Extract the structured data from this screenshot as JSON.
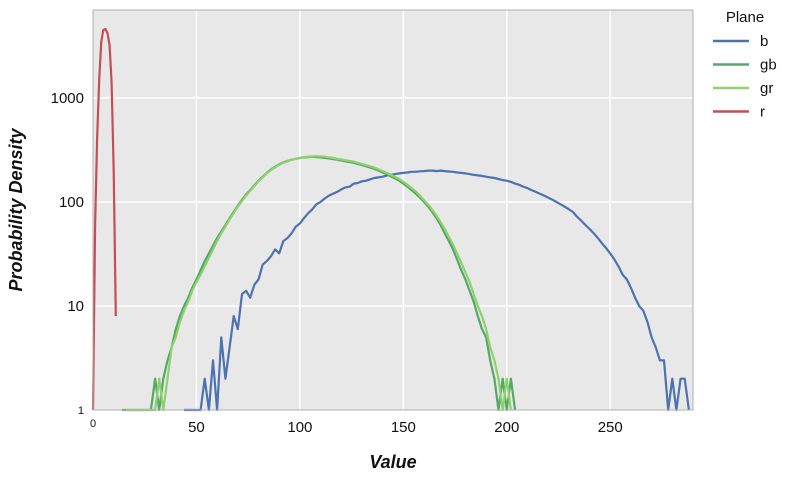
{
  "chart_data": {
    "type": "line",
    "xlabel": "Value",
    "ylabel": "Probability Density",
    "xlim": [
      0,
      290
    ],
    "ylim": [
      1,
      7000
    ],
    "yscale": "log",
    "x_ticks": [
      0,
      50,
      100,
      150,
      200,
      250
    ],
    "y_ticks": [
      1,
      10,
      100,
      1000
    ],
    "y_tick_labels": [
      "1",
      "10",
      "100",
      "1000"
    ],
    "grid": true,
    "legend": {
      "title": "Plane",
      "placement": "outside-top-right"
    },
    "series": [
      {
        "name": "b",
        "color": "#4c72b0",
        "points": [
          [
            44,
            1
          ],
          [
            48,
            1
          ],
          [
            52,
            1
          ],
          [
            54,
            2
          ],
          [
            56,
            1
          ],
          [
            58,
            3
          ],
          [
            60,
            1
          ],
          [
            62,
            5
          ],
          [
            64,
            2
          ],
          [
            66,
            4
          ],
          [
            68,
            8
          ],
          [
            70,
            6
          ],
          [
            72,
            13
          ],
          [
            74,
            14
          ],
          [
            76,
            12
          ],
          [
            78,
            16
          ],
          [
            80,
            18
          ],
          [
            82,
            25
          ],
          [
            84,
            27
          ],
          [
            86,
            30
          ],
          [
            88,
            35
          ],
          [
            90,
            32
          ],
          [
            92,
            42
          ],
          [
            94,
            45
          ],
          [
            96,
            50
          ],
          [
            98,
            58
          ],
          [
            100,
            62
          ],
          [
            102,
            70
          ],
          [
            104,
            78
          ],
          [
            106,
            85
          ],
          [
            108,
            95
          ],
          [
            110,
            100
          ],
          [
            112,
            108
          ],
          [
            114,
            115
          ],
          [
            116,
            120
          ],
          [
            118,
            125
          ],
          [
            120,
            132
          ],
          [
            122,
            138
          ],
          [
            124,
            140
          ],
          [
            126,
            150
          ],
          [
            128,
            152
          ],
          [
            130,
            158
          ],
          [
            132,
            160
          ],
          [
            134,
            165
          ],
          [
            136,
            170
          ],
          [
            138,
            172
          ],
          [
            140,
            175
          ],
          [
            142,
            180
          ],
          [
            144,
            182
          ],
          [
            146,
            185
          ],
          [
            148,
            188
          ],
          [
            150,
            190
          ],
          [
            152,
            192
          ],
          [
            154,
            195
          ],
          [
            156,
            195
          ],
          [
            158,
            197
          ],
          [
            160,
            198
          ],
          [
            162,
            200
          ],
          [
            164,
            200
          ],
          [
            166,
            198
          ],
          [
            168,
            200
          ],
          [
            170,
            198
          ],
          [
            172,
            196
          ],
          [
            174,
            195
          ],
          [
            176,
            192
          ],
          [
            178,
            190
          ],
          [
            180,
            188
          ],
          [
            182,
            185
          ],
          [
            184,
            182
          ],
          [
            186,
            180
          ],
          [
            188,
            178
          ],
          [
            190,
            175
          ],
          [
            192,
            172
          ],
          [
            194,
            170
          ],
          [
            196,
            166
          ],
          [
            198,
            162
          ],
          [
            200,
            160
          ],
          [
            202,
            156
          ],
          [
            204,
            150
          ],
          [
            206,
            146
          ],
          [
            208,
            140
          ],
          [
            210,
            136
          ],
          [
            212,
            130
          ],
          [
            214,
            125
          ],
          [
            216,
            120
          ],
          [
            218,
            115
          ],
          [
            220,
            110
          ],
          [
            222,
            105
          ],
          [
            224,
            100
          ],
          [
            226,
            95
          ],
          [
            228,
            90
          ],
          [
            230,
            85
          ],
          [
            232,
            80
          ],
          [
            234,
            72
          ],
          [
            236,
            66
          ],
          [
            238,
            60
          ],
          [
            240,
            55
          ],
          [
            242,
            50
          ],
          [
            244,
            45
          ],
          [
            246,
            40
          ],
          [
            248,
            36
          ],
          [
            250,
            32
          ],
          [
            252,
            28
          ],
          [
            254,
            24
          ],
          [
            256,
            20
          ],
          [
            258,
            18
          ],
          [
            260,
            15
          ],
          [
            262,
            12
          ],
          [
            264,
            10
          ],
          [
            266,
            9
          ],
          [
            268,
            7
          ],
          [
            270,
            5
          ],
          [
            272,
            4
          ],
          [
            274,
            3
          ],
          [
            276,
            3
          ],
          [
            278,
            1
          ],
          [
            280,
            2
          ],
          [
            282,
            1
          ],
          [
            284,
            2
          ],
          [
            286,
            2
          ],
          [
            288,
            1
          ]
        ]
      },
      {
        "name": "gb",
        "color": "#55a868",
        "points": [
          [
            14,
            1
          ],
          [
            28,
            1
          ],
          [
            30,
            2
          ],
          [
            32,
            1
          ],
          [
            34,
            2
          ],
          [
            36,
            3
          ],
          [
            38,
            4
          ],
          [
            40,
            6
          ],
          [
            42,
            8
          ],
          [
            44,
            10
          ],
          [
            46,
            12
          ],
          [
            48,
            15
          ],
          [
            50,
            18
          ],
          [
            52,
            22
          ],
          [
            54,
            27
          ],
          [
            56,
            32
          ],
          [
            58,
            38
          ],
          [
            60,
            45
          ],
          [
            62,
            52
          ],
          [
            64,
            60
          ],
          [
            66,
            70
          ],
          [
            68,
            80
          ],
          [
            70,
            92
          ],
          [
            72,
            105
          ],
          [
            74,
            118
          ],
          [
            76,
            130
          ],
          [
            78,
            145
          ],
          [
            80,
            160
          ],
          [
            82,
            175
          ],
          [
            84,
            190
          ],
          [
            86,
            205
          ],
          [
            88,
            218
          ],
          [
            90,
            230
          ],
          [
            92,
            240
          ],
          [
            94,
            248
          ],
          [
            96,
            255
          ],
          [
            98,
            260
          ],
          [
            100,
            265
          ],
          [
            102,
            268
          ],
          [
            104,
            270
          ],
          [
            106,
            272
          ],
          [
            108,
            270
          ],
          [
            110,
            268
          ],
          [
            112,
            265
          ],
          [
            114,
            262
          ],
          [
            116,
            258
          ],
          [
            118,
            255
          ],
          [
            120,
            250
          ],
          [
            122,
            246
          ],
          [
            124,
            242
          ],
          [
            126,
            238
          ],
          [
            128,
            232
          ],
          [
            130,
            226
          ],
          [
            132,
            220
          ],
          [
            134,
            214
          ],
          [
            136,
            208
          ],
          [
            138,
            200
          ],
          [
            140,
            192
          ],
          [
            142,
            185
          ],
          [
            144,
            176
          ],
          [
            146,
            168
          ],
          [
            148,
            160
          ],
          [
            150,
            150
          ],
          [
            152,
            140
          ],
          [
            154,
            130
          ],
          [
            156,
            120
          ],
          [
            158,
            110
          ],
          [
            160,
            100
          ],
          [
            162,
            90
          ],
          [
            164,
            80
          ],
          [
            166,
            70
          ],
          [
            168,
            60
          ],
          [
            170,
            50
          ],
          [
            172,
            42
          ],
          [
            174,
            35
          ],
          [
            176,
            28
          ],
          [
            178,
            22
          ],
          [
            180,
            18
          ],
          [
            182,
            14
          ],
          [
            184,
            11
          ],
          [
            186,
            8
          ],
          [
            188,
            6
          ],
          [
            190,
            5
          ],
          [
            192,
            3
          ],
          [
            194,
            2
          ],
          [
            196,
            1
          ],
          [
            198,
            2
          ],
          [
            200,
            1
          ],
          [
            202,
            2
          ],
          [
            204,
            1
          ]
        ]
      },
      {
        "name": "gr",
        "color": "#8fd16a",
        "points": [
          [
            16,
            1
          ],
          [
            30,
            1
          ],
          [
            32,
            2
          ],
          [
            34,
            1
          ],
          [
            36,
            2
          ],
          [
            38,
            4
          ],
          [
            40,
            5
          ],
          [
            42,
            7
          ],
          [
            44,
            9
          ],
          [
            46,
            11
          ],
          [
            48,
            14
          ],
          [
            50,
            17
          ],
          [
            52,
            20
          ],
          [
            54,
            24
          ],
          [
            56,
            29
          ],
          [
            58,
            35
          ],
          [
            60,
            42
          ],
          [
            62,
            50
          ],
          [
            64,
            58
          ],
          [
            66,
            68
          ],
          [
            68,
            78
          ],
          [
            70,
            90
          ],
          [
            72,
            102
          ],
          [
            74,
            115
          ],
          [
            76,
            128
          ],
          [
            78,
            142
          ],
          [
            80,
            158
          ],
          [
            82,
            172
          ],
          [
            84,
            188
          ],
          [
            86,
            202
          ],
          [
            88,
            215
          ],
          [
            90,
            228
          ],
          [
            92,
            238
          ],
          [
            94,
            246
          ],
          [
            96,
            254
          ],
          [
            98,
            260
          ],
          [
            100,
            265
          ],
          [
            102,
            270
          ],
          [
            104,
            272
          ],
          [
            106,
            274
          ],
          [
            108,
            275
          ],
          [
            110,
            274
          ],
          [
            112,
            272
          ],
          [
            114,
            268
          ],
          [
            116,
            265
          ],
          [
            118,
            260
          ],
          [
            120,
            256
          ],
          [
            122,
            252
          ],
          [
            124,
            248
          ],
          [
            126,
            244
          ],
          [
            128,
            238
          ],
          [
            130,
            232
          ],
          [
            132,
            226
          ],
          [
            134,
            220
          ],
          [
            136,
            214
          ],
          [
            138,
            206
          ],
          [
            140,
            198
          ],
          [
            142,
            190
          ],
          [
            144,
            182
          ],
          [
            146,
            174
          ],
          [
            148,
            166
          ],
          [
            150,
            156
          ],
          [
            152,
            146
          ],
          [
            154,
            136
          ],
          [
            156,
            126
          ],
          [
            158,
            115
          ],
          [
            160,
            104
          ],
          [
            162,
            94
          ],
          [
            164,
            84
          ],
          [
            166,
            74
          ],
          [
            168,
            64
          ],
          [
            170,
            55
          ],
          [
            172,
            46
          ],
          [
            174,
            39
          ],
          [
            176,
            32
          ],
          [
            178,
            26
          ],
          [
            180,
            21
          ],
          [
            182,
            17
          ],
          [
            184,
            13
          ],
          [
            186,
            10
          ],
          [
            188,
            8
          ],
          [
            190,
            6
          ],
          [
            192,
            4
          ],
          [
            194,
            3
          ],
          [
            196,
            2
          ],
          [
            198,
            1
          ],
          [
            200,
            2
          ],
          [
            202,
            1
          ]
        ]
      },
      {
        "name": "r",
        "color": "#c44e52",
        "points": [
          [
            0,
            1
          ],
          [
            1,
            60
          ],
          [
            2,
            400
          ],
          [
            3,
            1500
          ],
          [
            4,
            3500
          ],
          [
            5,
            4500
          ],
          [
            6,
            4600
          ],
          [
            7,
            4200
          ],
          [
            8,
            3200
          ],
          [
            9,
            1400
          ],
          [
            10,
            200
          ],
          [
            11,
            8
          ]
        ]
      }
    ]
  }
}
